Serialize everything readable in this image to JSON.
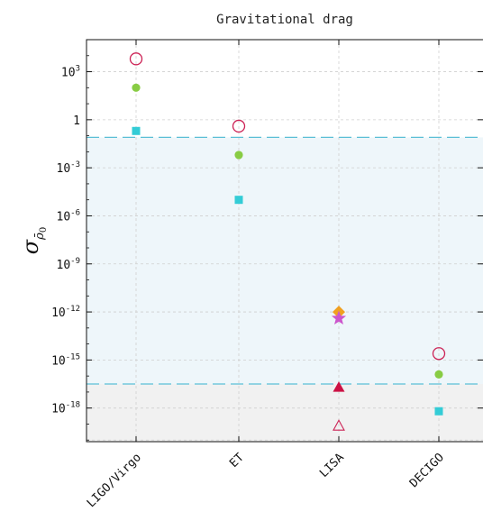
{
  "chart_data": {
    "type": "scatter",
    "title": "Gravitational  drag",
    "ylabel": "σ_ρ̄0",
    "y_scale": "log",
    "ylim_log10": [
      -20.1,
      5.0
    ],
    "y_ticks": [
      {
        "label_main": "10",
        "label_exp": "3",
        "log10": 3
      },
      {
        "label_main": "1",
        "label_exp": "",
        "log10": 0
      },
      {
        "label_main": "10",
        "label_exp": "-3",
        "log10": -3
      },
      {
        "label_main": "10",
        "label_exp": "-6",
        "log10": -6
      },
      {
        "label_main": "10",
        "label_exp": "-9",
        "log10": -9
      },
      {
        "label_main": "10",
        "label_exp": "-12",
        "log10": -12
      },
      {
        "label_main": "10",
        "label_exp": "-15",
        "log10": -15
      },
      {
        "label_main": "10",
        "label_exp": "-18",
        "log10": -18
      }
    ],
    "categories": [
      "LIGO/Virgo",
      "ET",
      "LISA",
      "DECIGO"
    ],
    "grid": true,
    "bands": [
      {
        "from_log10": -16.5,
        "to_log10": -1.1,
        "color": "#eef6fa"
      },
      {
        "from_log10": -20.1,
        "to_log10": -16.5,
        "color": "#f1f1f1"
      }
    ],
    "reference_lines": [
      {
        "log10": -1.1,
        "color": "#5bbfd6"
      },
      {
        "log10": -16.5,
        "color": "#5bbfd6"
      }
    ],
    "series": [
      {
        "marker": "circle-open",
        "color": "#cc2255",
        "points": [
          {
            "x": "LIGO/Virgo",
            "log10": 3.8
          },
          {
            "x": "ET",
            "log10": -0.4
          },
          {
            "x": "DECIGO",
            "log10": -14.6
          }
        ]
      },
      {
        "marker": "circle-filled",
        "color": "#88cc44",
        "points": [
          {
            "x": "LIGO/Virgo",
            "log10": 2.0
          },
          {
            "x": "ET",
            "log10": -2.2
          },
          {
            "x": "DECIGO",
            "log10": -15.9
          }
        ]
      },
      {
        "marker": "square",
        "color": "#33ccd6",
        "points": [
          {
            "x": "LIGO/Virgo",
            "log10": -0.7
          },
          {
            "x": "ET",
            "log10": -5.0
          },
          {
            "x": "DECIGO",
            "log10": -18.2
          }
        ]
      },
      {
        "marker": "diamond",
        "color": "#f0a020",
        "points": [
          {
            "x": "LISA",
            "log10": -12.0
          }
        ]
      },
      {
        "marker": "star",
        "color": "#cc55cc",
        "points": [
          {
            "x": "LISA",
            "log10": -12.4
          }
        ]
      },
      {
        "marker": "triangle-filled",
        "color": "#cc1144",
        "points": [
          {
            "x": "LISA",
            "log10": -16.7
          }
        ]
      },
      {
        "marker": "triangle-open",
        "color": "#cc2255",
        "points": [
          {
            "x": "LISA",
            "log10": -19.1
          }
        ]
      }
    ]
  }
}
